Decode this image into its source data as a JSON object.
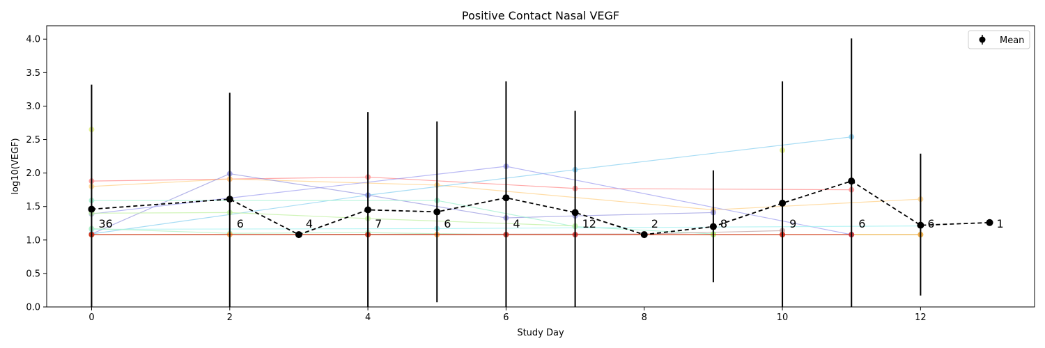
{
  "chart_data": {
    "type": "line",
    "title": "Positive Contact Nasal VEGF",
    "xlabel": "Study Day",
    "ylabel": "log10(VEGF)",
    "xlim": [
      -0.65,
      13.65
    ],
    "ylim": [
      0.0,
      4.2
    ],
    "x_ticks": [
      0,
      2,
      4,
      6,
      8,
      10,
      12
    ],
    "y_ticks": [
      0.0,
      0.5,
      1.0,
      1.5,
      2.0,
      2.5,
      3.0,
      3.5,
      4.0
    ],
    "grid": false,
    "legend": {
      "placement": "top-right",
      "entries": [
        "Mean"
      ]
    },
    "mean_series": {
      "name": "Mean",
      "color": "#000000",
      "points": [
        {
          "x": 0,
          "mean": 1.46,
          "lo": 0.0,
          "hi": 3.32,
          "n": "36"
        },
        {
          "x": 2,
          "mean": 1.61,
          "lo": 0.0,
          "hi": 3.2,
          "n": "6"
        },
        {
          "x": 3,
          "mean": 1.08,
          "lo": 1.08,
          "hi": 1.08,
          "n": "4"
        },
        {
          "x": 4,
          "mean": 1.45,
          "lo": 0.0,
          "hi": 2.91,
          "n": "7"
        },
        {
          "x": 5,
          "mean": 1.42,
          "lo": 0.07,
          "hi": 2.77,
          "n": "6"
        },
        {
          "x": 6,
          "mean": 1.63,
          "lo": 0.0,
          "hi": 3.37,
          "n": "4"
        },
        {
          "x": 7,
          "mean": 1.41,
          "lo": 0.0,
          "hi": 2.93,
          "n": "12"
        },
        {
          "x": 8,
          "mean": 1.08,
          "lo": 1.08,
          "hi": 1.08,
          "n": "2"
        },
        {
          "x": 9,
          "mean": 1.2,
          "lo": 0.37,
          "hi": 2.04,
          "n": "8"
        },
        {
          "x": 10,
          "mean": 1.55,
          "lo": 0.0,
          "hi": 3.37,
          "n": "9"
        },
        {
          "x": 11,
          "mean": 1.88,
          "lo": 0.0,
          "hi": 4.01,
          "n": "6"
        },
        {
          "x": 12,
          "mean": 1.22,
          "lo": 0.17,
          "hi": 2.29,
          "n": "6"
        },
        {
          "x": 13,
          "mean": 1.26,
          "lo": 1.26,
          "hi": 1.26,
          "n": "1"
        }
      ]
    },
    "subject_series": [
      {
        "color": "#ff8c8c",
        "points": [
          [
            0,
            1.88
          ],
          [
            2,
            1.91
          ],
          [
            4,
            1.94
          ],
          [
            7,
            1.77
          ],
          [
            11,
            1.75
          ]
        ]
      },
      {
        "color": "#ffd28a",
        "points": [
          [
            0,
            1.8
          ],
          [
            2,
            1.91
          ],
          [
            5,
            1.82
          ],
          [
            9,
            1.45
          ],
          [
            12,
            1.61
          ]
        ]
      },
      {
        "color": "#8ad0f0",
        "points": [
          [
            0,
            1.09
          ],
          [
            4,
            1.67
          ],
          [
            7,
            2.05
          ],
          [
            11,
            2.54
          ]
        ]
      },
      {
        "color": "#9a9ae0",
        "points": [
          [
            0,
            1.09
          ],
          [
            2,
            1.99
          ],
          [
            4,
            1.67
          ],
          [
            6,
            1.33
          ],
          [
            7,
            1.36
          ],
          [
            9,
            1.41
          ]
        ]
      },
      {
        "color": "#a0a0f0",
        "points": [
          [
            0,
            1.39
          ],
          [
            6,
            2.1
          ],
          [
            11,
            1.08
          ]
        ]
      },
      {
        "color": "#a0f0d0",
        "points": [
          [
            0,
            1.59
          ],
          [
            5,
            1.59
          ],
          [
            7,
            1.2
          ],
          [
            9,
            1.09
          ]
        ]
      },
      {
        "color": "#a0f0f0",
        "points": [
          [
            0,
            1.16
          ],
          [
            5,
            1.17
          ],
          [
            12,
            1.21
          ]
        ]
      },
      {
        "color": "#c0f0a0",
        "points": [
          [
            0,
            1.4
          ],
          [
            2,
            1.41
          ],
          [
            4,
            1.32
          ],
          [
            7,
            1.21
          ]
        ]
      },
      {
        "color": "#b0f0c0",
        "points": [
          [
            0,
            1.17
          ],
          [
            2,
            1.1
          ],
          [
            4,
            1.11
          ],
          [
            6,
            1.08
          ]
        ]
      },
      {
        "color": "#e0f080",
        "points": [
          [
            0,
            2.65
          ]
        ]
      },
      {
        "color": "#e0f080",
        "points": [
          [
            10,
            2.34
          ]
        ]
      },
      {
        "color": "#c0a0a0",
        "points": [
          [
            0,
            1.08
          ],
          [
            8,
            1.09
          ],
          [
            10,
            1.14
          ]
        ]
      },
      {
        "color": "#b0f060",
        "points": [
          [
            0,
            1.08
          ],
          [
            4,
            1.08
          ],
          [
            9,
            1.08
          ],
          [
            12,
            1.08
          ]
        ]
      },
      {
        "color": "#ffa040",
        "points": [
          [
            0,
            1.08
          ],
          [
            2,
            1.08
          ],
          [
            5,
            1.08
          ],
          [
            10,
            1.08
          ],
          [
            12,
            1.08
          ]
        ]
      },
      {
        "color": "#cc2020",
        "points": [
          [
            0,
            1.08
          ],
          [
            3,
            1.08
          ],
          [
            4,
            1.08
          ],
          [
            6,
            1.08
          ],
          [
            7,
            1.08
          ],
          [
            8,
            1.08
          ],
          [
            10,
            1.08
          ],
          [
            11,
            1.08
          ]
        ]
      }
    ]
  }
}
